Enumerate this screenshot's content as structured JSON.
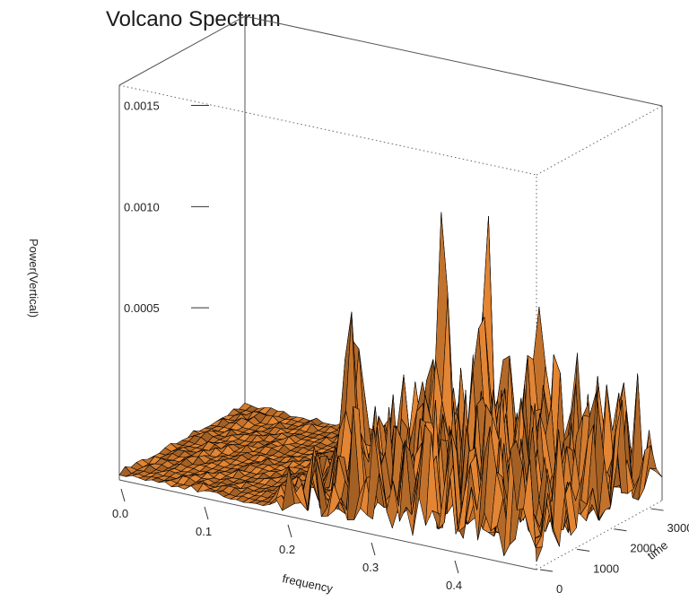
{
  "title": "Volcano Spectrum",
  "chart_data": {
    "type": "surface3d",
    "xlabel": "frequency",
    "ylabel": "time",
    "zlabel": "Power(Vertical)",
    "x_ticks": [
      "0.0",
      "0.1",
      "0.2",
      "0.3",
      "0.4"
    ],
    "y_ticks": [
      "0",
      "1000",
      "2000",
      "3000"
    ],
    "z_ticks": [
      "0.0005",
      "0.0010",
      "0.0015"
    ],
    "xlim": [
      0,
      0.5
    ],
    "ylim": [
      0,
      3400
    ],
    "zlim": [
      0,
      0.00195
    ],
    "surface_color": "#e38533",
    "edge_color": "#000000",
    "peaks": [
      {
        "frequency": 0.3,
        "time": 2000,
        "power": 0.00182
      },
      {
        "frequency": 0.31,
        "time": 2900,
        "power": 0.0016
      },
      {
        "frequency": 0.33,
        "time": 2400,
        "power": 0.00112
      },
      {
        "frequency": 0.2,
        "time": 1700,
        "power": 0.0011
      },
      {
        "frequency": 0.16,
        "time": 2800,
        "power": 0.00082
      },
      {
        "frequency": 0.36,
        "time": 3200,
        "power": 0.00092
      },
      {
        "frequency": 0.27,
        "time": 2300,
        "power": 0.00085
      }
    ]
  }
}
